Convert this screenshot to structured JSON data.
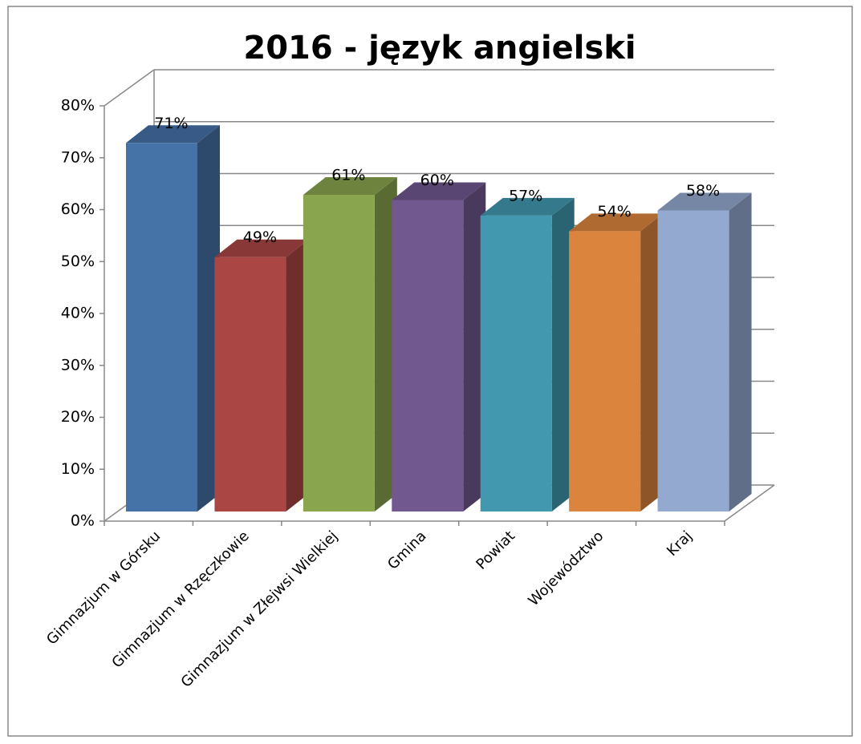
{
  "chart_data": {
    "type": "bar",
    "title": "2016 - język angielski",
    "categories": [
      "Gimnazjum w Górsku",
      "Gimnazjum w Rzęczkowie",
      "Gimnazjum w Złejwsi Wielkiej",
      "Gmina",
      "Powiat",
      "Województwo",
      "Kraj"
    ],
    "values": [
      71,
      49,
      61,
      60,
      57,
      54,
      58
    ],
    "value_labels": [
      "71%",
      "49%",
      "61%",
      "60%",
      "57%",
      "54%",
      "58%"
    ],
    "colors": [
      "#4572a7",
      "#aa4643",
      "#89a54e",
      "#71588f",
      "#4198af",
      "#db843d",
      "#93a9cf"
    ],
    "ylim": [
      0,
      80
    ],
    "yticks": [
      {
        "value": 0,
        "label": "0%"
      },
      {
        "value": 10,
        "label": "10%"
      },
      {
        "value": 20,
        "label": "20%"
      },
      {
        "value": 30,
        "label": "30%"
      },
      {
        "value": 40,
        "label": "40%"
      },
      {
        "value": 50,
        "label": "50%"
      },
      {
        "value": 60,
        "label": "60%"
      },
      {
        "value": 70,
        "label": "70%"
      },
      {
        "value": 80,
        "label": "80%"
      }
    ],
    "grid": true
  }
}
